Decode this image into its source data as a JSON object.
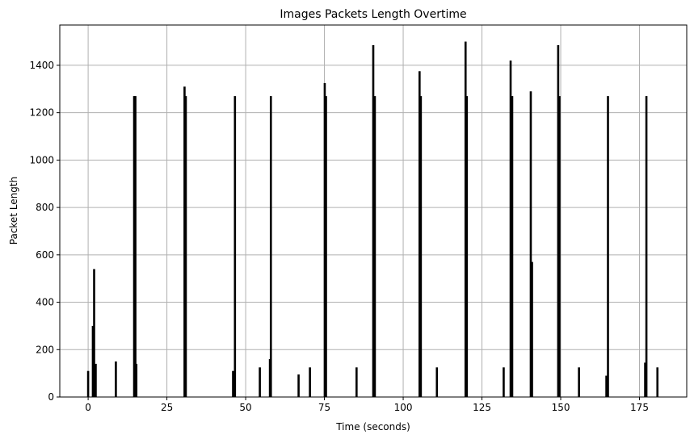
{
  "chart_data": {
    "type": "bar",
    "title": "Images Packets Length Overtime",
    "xlabel": "Time (seconds)",
    "ylabel": "Packet Length",
    "xlim": [
      -9,
      190
    ],
    "ylim": [
      0,
      1570
    ],
    "xticks": [
      0,
      25,
      50,
      75,
      100,
      125,
      150,
      175
    ],
    "yticks": [
      0,
      200,
      400,
      600,
      800,
      1000,
      1200,
      1400
    ],
    "grid": true,
    "bar_color": "#000000",
    "x": [
      0.0,
      1.5,
      1.9,
      2.4,
      8.8,
      14.6,
      15.0,
      15.3,
      30.6,
      31.0,
      46.0,
      46.6,
      54.5,
      57.7,
      58.0,
      66.8,
      70.4,
      75.1,
      75.5,
      85.2,
      90.5,
      91.0,
      105.2,
      105.6,
      110.7,
      119.8,
      120.2,
      131.9,
      134.1,
      134.6,
      140.5,
      140.9,
      149.2,
      149.6,
      155.8,
      164.5,
      165.0,
      176.8,
      177.2,
      180.7
    ],
    "values": [
      110,
      300,
      540,
      140,
      150,
      1270,
      1270,
      140,
      1310,
      1270,
      110,
      1270,
      125,
      160,
      1270,
      95,
      125,
      1325,
      1270,
      125,
      1485,
      1270,
      1375,
      1270,
      125,
      1500,
      1270,
      125,
      1420,
      1270,
      1290,
      570,
      1485,
      1270,
      125,
      90,
      1270,
      145,
      1270,
      125
    ]
  }
}
